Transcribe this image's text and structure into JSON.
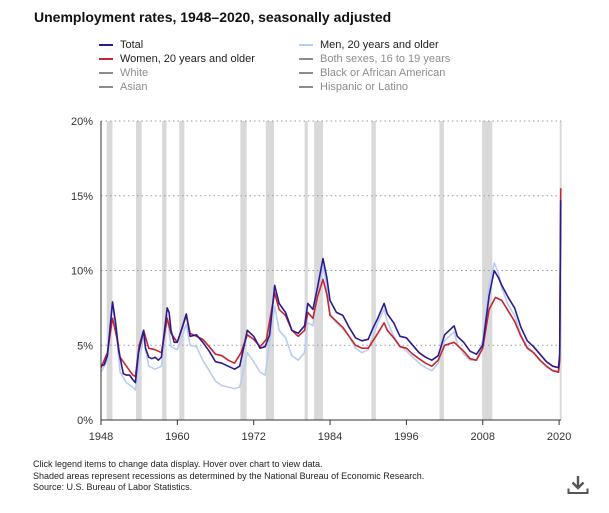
{
  "title": "Unemployment rates, 1948–2020, seasonally adjusted",
  "legend": [
    {
      "label": "Total",
      "color": "#2b1a8f",
      "active": true
    },
    {
      "label": "Men, 20 years and older",
      "color": "#b9cdf0",
      "active": true
    },
    {
      "label": "Women, 20 years and older",
      "color": "#c62631",
      "active": true
    },
    {
      "label": "Both sexes, 16 to 19 years",
      "color": "#8c8c8c",
      "active": false
    },
    {
      "label": "White",
      "color": "#8c8c8c",
      "active": false
    },
    {
      "label": "Black or African American",
      "color": "#8c8c8c",
      "active": false
    },
    {
      "label": "Asian",
      "color": "#8c8c8c",
      "active": false
    },
    {
      "label": "Hispanic or Latino",
      "color": "#8c8c8c",
      "active": false
    }
  ],
  "notes": [
    "Click legend items to change data display. Hover over chart to view data.",
    "Shaded areas represent recessions as determined by the National Bureau of Economic Research.",
    "Source: U.S. Bureau of Labor Statistics."
  ],
  "download_icon": "download-icon",
  "chart_data": {
    "type": "line",
    "xlim": [
      1948,
      2020.3
    ],
    "ylim": [
      0,
      20
    ],
    "x_ticks": [
      {
        "value": 1948,
        "label": "1948"
      },
      {
        "value": 1960,
        "label": "1960"
      },
      {
        "value": 1972,
        "label": "1972"
      },
      {
        "value": 1984,
        "label": "1984"
      },
      {
        "value": 1996,
        "label": "1996"
      },
      {
        "value": 2008,
        "label": "2008"
      },
      {
        "value": 2020,
        "label": "2020"
      }
    ],
    "y_ticks": [
      {
        "value": 0,
        "label": "0%"
      },
      {
        "value": 5,
        "label": "5%"
      },
      {
        "value": 10,
        "label": "10%"
      },
      {
        "value": 15,
        "label": "15%"
      },
      {
        "value": 20,
        "label": "20%"
      }
    ],
    "grid": "horizontal dotted",
    "recessions": [
      [
        1948.9,
        1949.8
      ],
      [
        1953.5,
        1954.4
      ],
      [
        1957.6,
        1958.3
      ],
      [
        1960.3,
        1961.1
      ],
      [
        1969.9,
        1970.9
      ],
      [
        1973.9,
        1975.2
      ],
      [
        1980.0,
        1980.5
      ],
      [
        1981.5,
        1982.9
      ],
      [
        1990.5,
        1991.2
      ],
      [
        2001.2,
        2001.9
      ],
      [
        2007.9,
        2009.5
      ],
      [
        2020.1,
        2020.3
      ]
    ],
    "series": [
      {
        "name": "Total",
        "color": "#2b1a8f",
        "points": [
          [
            1948,
            3.6
          ],
          [
            1948.5,
            3.7
          ],
          [
            1949,
            4.3
          ],
          [
            1949.8,
            7.9
          ],
          [
            1950.3,
            6.5
          ],
          [
            1950.8,
            4.6
          ],
          [
            1951.5,
            3.1
          ],
          [
            1952,
            3.0
          ],
          [
            1952.5,
            3.0
          ],
          [
            1953,
            2.7
          ],
          [
            1953.4,
            2.5
          ],
          [
            1953.9,
            4.5
          ],
          [
            1954.7,
            6.0
          ],
          [
            1955,
            4.8
          ],
          [
            1955.5,
            4.2
          ],
          [
            1956,
            4.1
          ],
          [
            1956.5,
            4.2
          ],
          [
            1957,
            4.0
          ],
          [
            1957.5,
            4.2
          ],
          [
            1958.4,
            7.5
          ],
          [
            1958.7,
            7.2
          ],
          [
            1959,
            6.0
          ],
          [
            1959.5,
            5.2
          ],
          [
            1960,
            5.2
          ],
          [
            1960.7,
            6.1
          ],
          [
            1961.4,
            7.1
          ],
          [
            1962,
            5.6
          ],
          [
            1963,
            5.7
          ],
          [
            1964,
            5.2
          ],
          [
            1965,
            4.6
          ],
          [
            1966,
            3.9
          ],
          [
            1967,
            3.8
          ],
          [
            1968,
            3.6
          ],
          [
            1969,
            3.4
          ],
          [
            1969.8,
            3.6
          ],
          [
            1970.5,
            5.0
          ],
          [
            1971,
            6.0
          ],
          [
            1972,
            5.6
          ],
          [
            1973,
            4.8
          ],
          [
            1973.8,
            4.9
          ],
          [
            1974.5,
            5.7
          ],
          [
            1975.3,
            9.0
          ],
          [
            1976,
            7.8
          ],
          [
            1977,
            7.2
          ],
          [
            1978,
            6.0
          ],
          [
            1979,
            5.8
          ],
          [
            1980,
            6.3
          ],
          [
            1980.5,
            7.8
          ],
          [
            1981.3,
            7.4
          ],
          [
            1982,
            8.8
          ],
          [
            1982.9,
            10.8
          ],
          [
            1983.5,
            9.5
          ],
          [
            1984,
            8.0
          ],
          [
            1985,
            7.2
          ],
          [
            1986,
            7.0
          ],
          [
            1987,
            6.2
          ],
          [
            1988,
            5.5
          ],
          [
            1989,
            5.3
          ],
          [
            1990,
            5.4
          ],
          [
            1990.8,
            6.2
          ],
          [
            1991.5,
            6.8
          ],
          [
            1992.5,
            7.8
          ],
          [
            1993,
            7.1
          ],
          [
            1994,
            6.5
          ],
          [
            1995,
            5.6
          ],
          [
            1996,
            5.5
          ],
          [
            1997,
            5.0
          ],
          [
            1998,
            4.5
          ],
          [
            1999,
            4.2
          ],
          [
            2000,
            4.0
          ],
          [
            2001,
            4.3
          ],
          [
            2002,
            5.7
          ],
          [
            2003.5,
            6.3
          ],
          [
            2004,
            5.6
          ],
          [
            2005,
            5.2
          ],
          [
            2006,
            4.6
          ],
          [
            2007,
            4.4
          ],
          [
            2008,
            5.0
          ],
          [
            2009,
            8.3
          ],
          [
            2009.8,
            10.0
          ],
          [
            2010.5,
            9.5
          ],
          [
            2011,
            9.0
          ],
          [
            2012,
            8.2
          ],
          [
            2013,
            7.5
          ],
          [
            2014,
            6.2
          ],
          [
            2015,
            5.3
          ],
          [
            2016,
            4.9
          ],
          [
            2017,
            4.4
          ],
          [
            2018,
            3.9
          ],
          [
            2019,
            3.6
          ],
          [
            2019.9,
            3.5
          ],
          [
            2020.1,
            4.4
          ],
          [
            2020.25,
            14.7
          ]
        ]
      },
      {
        "name": "Men, 20 years and older",
        "color": "#b9cdf0",
        "points": [
          [
            1948,
            3.2
          ],
          [
            1949,
            4.0
          ],
          [
            1949.8,
            7.8
          ],
          [
            1950.5,
            5.4
          ],
          [
            1951,
            3.2
          ],
          [
            1952,
            2.5
          ],
          [
            1953,
            2.2
          ],
          [
            1953.4,
            2.0
          ],
          [
            1954,
            3.9
          ],
          [
            1954.7,
            5.6
          ],
          [
            1955.5,
            3.6
          ],
          [
            1956.5,
            3.4
          ],
          [
            1957.5,
            3.6
          ],
          [
            1958.4,
            7.0
          ],
          [
            1959,
            4.9
          ],
          [
            1960,
            4.7
          ],
          [
            1961.4,
            6.4
          ],
          [
            1962,
            5.0
          ],
          [
            1963,
            4.9
          ],
          [
            1964,
            4.0
          ],
          [
            1965,
            3.3
          ],
          [
            1966,
            2.6
          ],
          [
            1967,
            2.3
          ],
          [
            1968,
            2.2
          ],
          [
            1969,
            2.1
          ],
          [
            1969.8,
            2.2
          ],
          [
            1970.5,
            3.5
          ],
          [
            1971,
            4.5
          ],
          [
            1972,
            3.9
          ],
          [
            1973,
            3.2
          ],
          [
            1973.8,
            3.0
          ],
          [
            1975.3,
            7.6
          ],
          [
            1976,
            6.0
          ],
          [
            1977,
            5.5
          ],
          [
            1978,
            4.3
          ],
          [
            1979,
            4.0
          ],
          [
            1980,
            4.5
          ],
          [
            1980.5,
            6.5
          ],
          [
            1981.3,
            6.3
          ],
          [
            1982,
            8.2
          ],
          [
            1982.9,
            10.3
          ],
          [
            1983.5,
            8.8
          ],
          [
            1984,
            7.1
          ],
          [
            1985,
            6.5
          ],
          [
            1986,
            6.1
          ],
          [
            1987,
            5.6
          ],
          [
            1988,
            4.8
          ],
          [
            1989,
            4.5
          ],
          [
            1990,
            4.7
          ],
          [
            1991.5,
            6.5
          ],
          [
            1992.5,
            7.4
          ],
          [
            1993,
            6.6
          ],
          [
            1994,
            5.6
          ],
          [
            1995,
            5.0
          ],
          [
            1996,
            4.6
          ],
          [
            1997,
            4.2
          ],
          [
            1998,
            3.8
          ],
          [
            1999,
            3.5
          ],
          [
            2000,
            3.3
          ],
          [
            2001,
            3.8
          ],
          [
            2002,
            5.3
          ],
          [
            2003.5,
            5.9
          ],
          [
            2004,
            5.1
          ],
          [
            2005,
            4.4
          ],
          [
            2006,
            4.0
          ],
          [
            2007,
            4.0
          ],
          [
            2008,
            5.3
          ],
          [
            2009,
            9.0
          ],
          [
            2009.8,
            10.5
          ],
          [
            2010.5,
            9.8
          ],
          [
            2011,
            8.8
          ],
          [
            2012,
            7.7
          ],
          [
            2013,
            7.0
          ],
          [
            2014,
            5.7
          ],
          [
            2015,
            4.9
          ],
          [
            2016,
            4.5
          ],
          [
            2017,
            4.0
          ],
          [
            2018,
            3.6
          ],
          [
            2019,
            3.3
          ],
          [
            2019.9,
            3.3
          ],
          [
            2020.1,
            4.0
          ],
          [
            2020.25,
            13.0
          ]
        ]
      },
      {
        "name": "Women, 20 years and older",
        "color": "#c62631",
        "points": [
          [
            1948,
            3.5
          ],
          [
            1949,
            4.5
          ],
          [
            1949.8,
            6.8
          ],
          [
            1950.5,
            5.5
          ],
          [
            1951,
            4.2
          ],
          [
            1952,
            3.6
          ],
          [
            1953,
            3.0
          ],
          [
            1953.4,
            2.9
          ],
          [
            1954,
            5.0
          ],
          [
            1954.7,
            6.0
          ],
          [
            1955.5,
            4.8
          ],
          [
            1956.5,
            4.7
          ],
          [
            1957.5,
            4.5
          ],
          [
            1958.4,
            6.8
          ],
          [
            1959,
            5.8
          ],
          [
            1960,
            5.2
          ],
          [
            1961.4,
            7.0
          ],
          [
            1962,
            5.8
          ],
          [
            1963,
            5.6
          ],
          [
            1964,
            5.4
          ],
          [
            1965,
            4.9
          ],
          [
            1966,
            4.4
          ],
          [
            1967,
            4.3
          ],
          [
            1968,
            4.0
          ],
          [
            1969,
            3.8
          ],
          [
            1970,
            4.5
          ],
          [
            1971,
            5.7
          ],
          [
            1972,
            5.4
          ],
          [
            1973,
            4.9
          ],
          [
            1974,
            5.4
          ],
          [
            1975.3,
            8.5
          ],
          [
            1976,
            7.4
          ],
          [
            1977,
            7.0
          ],
          [
            1978,
            6.0
          ],
          [
            1979,
            5.6
          ],
          [
            1980,
            6.0
          ],
          [
            1980.5,
            7.2
          ],
          [
            1981.3,
            6.8
          ],
          [
            1982,
            8.2
          ],
          [
            1982.9,
            9.4
          ],
          [
            1983.5,
            8.4
          ],
          [
            1984,
            7.0
          ],
          [
            1985,
            6.6
          ],
          [
            1986,
            6.2
          ],
          [
            1987,
            5.6
          ],
          [
            1988,
            5.0
          ],
          [
            1989,
            4.8
          ],
          [
            1990,
            4.8
          ],
          [
            1991.5,
            5.8
          ],
          [
            1992.5,
            6.5
          ],
          [
            1993,
            6.0
          ],
          [
            1994,
            5.5
          ],
          [
            1995,
            4.9
          ],
          [
            1996,
            4.8
          ],
          [
            1997,
            4.4
          ],
          [
            1998,
            4.1
          ],
          [
            1999,
            3.8
          ],
          [
            2000,
            3.6
          ],
          [
            2001,
            4.0
          ],
          [
            2002,
            5.0
          ],
          [
            2003.5,
            5.2
          ],
          [
            2004,
            5.0
          ],
          [
            2005,
            4.6
          ],
          [
            2006,
            4.1
          ],
          [
            2007,
            4.0
          ],
          [
            2008,
            4.8
          ],
          [
            2009,
            7.4
          ],
          [
            2010,
            8.2
          ],
          [
            2011,
            8.0
          ],
          [
            2012,
            7.3
          ],
          [
            2013,
            6.6
          ],
          [
            2014,
            5.6
          ],
          [
            2015,
            4.8
          ],
          [
            2016,
            4.5
          ],
          [
            2017,
            4.0
          ],
          [
            2018,
            3.6
          ],
          [
            2019,
            3.3
          ],
          [
            2019.9,
            3.2
          ],
          [
            2020.1,
            4.0
          ],
          [
            2020.25,
            15.5
          ]
        ]
      }
    ]
  }
}
